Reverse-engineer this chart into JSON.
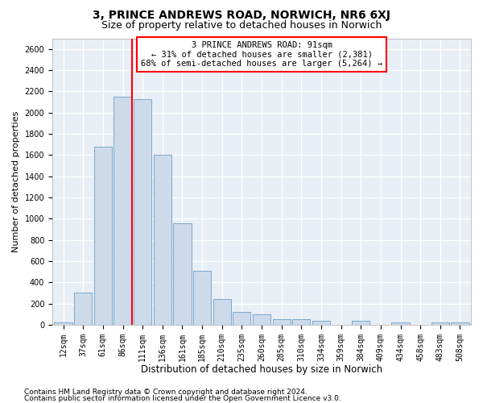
{
  "title": "3, PRINCE ANDREWS ROAD, NORWICH, NR6 6XJ",
  "subtitle": "Size of property relative to detached houses in Norwich",
  "xlabel": "Distribution of detached houses by size in Norwich",
  "ylabel": "Number of detached properties",
  "footnote1": "Contains HM Land Registry data © Crown copyright and database right 2024.",
  "footnote2": "Contains public sector information licensed under the Open Government Licence v3.0.",
  "bar_labels": [
    "12sqm",
    "37sqm",
    "61sqm",
    "86sqm",
    "111sqm",
    "136sqm",
    "161sqm",
    "185sqm",
    "210sqm",
    "235sqm",
    "260sqm",
    "285sqm",
    "310sqm",
    "334sqm",
    "359sqm",
    "384sqm",
    "409sqm",
    "434sqm",
    "458sqm",
    "483sqm",
    "508sqm"
  ],
  "bar_values": [
    25,
    300,
    1680,
    2150,
    2130,
    1600,
    960,
    505,
    240,
    120,
    100,
    50,
    50,
    35,
    0,
    35,
    0,
    20,
    0,
    20,
    25
  ],
  "bar_color": "#ccdaea",
  "bar_edge_color": "#6b9ec8",
  "vline_color": "red",
  "vline_position": 3.45,
  "annotation_line1": "3 PRINCE ANDREWS ROAD: 91sqm",
  "annotation_line2": "← 31% of detached houses are smaller (2,381)",
  "annotation_line3": "68% of semi-detached houses are larger (5,264) →",
  "ylim_min": 0,
  "ylim_max": 2700,
  "yticks": [
    0,
    200,
    400,
    600,
    800,
    1000,
    1200,
    1400,
    1600,
    1800,
    2000,
    2200,
    2400,
    2600
  ],
  "bg_color": "#e8eef5",
  "grid_color": "white",
  "title_fontsize": 10,
  "subtitle_fontsize": 9,
  "xlabel_fontsize": 8.5,
  "ylabel_fontsize": 8,
  "tick_fontsize": 7,
  "ann_fontsize": 7.5,
  "footnote_fontsize": 6.5
}
